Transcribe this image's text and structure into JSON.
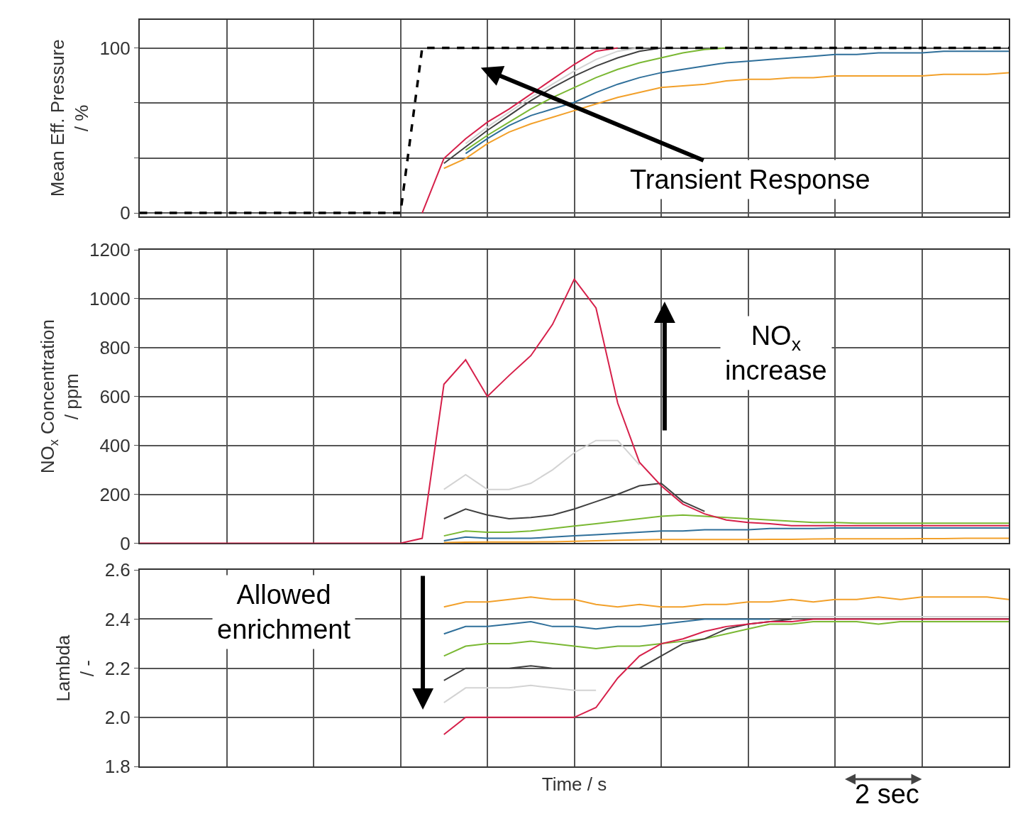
{
  "chart_data": [
    {
      "type": "line",
      "ylabel": "Mean Eff. Pressure\n/ %",
      "categories": [
        null,
        null,
        null,
        null,
        null,
        null,
        null,
        null,
        null,
        null,
        null,
        null,
        null,
        null,
        null,
        null,
        null,
        null,
        null,
        null,
        null,
        null,
        null,
        null,
        null,
        null,
        null,
        null,
        null,
        null,
        null,
        null,
        null,
        null,
        null,
        null,
        null,
        null,
        null,
        null,
        null
      ],
      "ylim": [
        -2,
        117
      ],
      "yticks": [
        0,
        {
          "value": 33.3,
          "label": null
        },
        {
          "value": 66.7,
          "label": null
        },
        100
      ],
      "grid": true,
      "tick_labels": "y",
      "annotations": [
        "Transient Response"
      ],
      "series": [
        {
          "color": "#f2a02a",
          "values": [
            null,
            null,
            null,
            null,
            null,
            null,
            null,
            null,
            null,
            null,
            null,
            null,
            null,
            null,
            27,
            33,
            42,
            49,
            54,
            58,
            62,
            66,
            70,
            73,
            76,
            77,
            78,
            80,
            81,
            81,
            82,
            82,
            83,
            83,
            83,
            83,
            83,
            84,
            84,
            84,
            85
          ]
        },
        {
          "color": "#2f6f9a",
          "values": [
            null,
            null,
            null,
            null,
            null,
            null,
            null,
            null,
            null,
            null,
            null,
            null,
            null,
            null,
            null,
            36,
            45,
            53,
            59,
            63,
            67,
            73,
            78,
            82,
            85,
            87,
            89,
            91,
            92,
            93,
            94,
            95,
            96,
            96,
            97,
            97,
            97,
            98,
            98,
            98,
            98
          ]
        },
        {
          "color": "#7ab833",
          "values": [
            null,
            null,
            null,
            null,
            null,
            null,
            null,
            null,
            null,
            null,
            null,
            null,
            null,
            null,
            null,
            38,
            47,
            55,
            63,
            70,
            76,
            82,
            87,
            91,
            94,
            97,
            99,
            100,
            null,
            null,
            null,
            null,
            null,
            null,
            null,
            null,
            null,
            null,
            null,
            null,
            null
          ]
        },
        {
          "color": "#404040",
          "values": [
            null,
            null,
            null,
            null,
            null,
            null,
            null,
            null,
            null,
            null,
            null,
            null,
            null,
            null,
            30,
            40,
            50,
            59,
            68,
            76,
            83,
            89,
            94,
            98,
            100,
            null,
            null,
            null,
            null,
            null,
            null,
            null,
            null,
            null,
            null,
            null,
            null,
            null,
            null,
            null,
            null
          ]
        },
        {
          "color": "#d3d3d3",
          "values": [
            null,
            null,
            null,
            null,
            null,
            null,
            null,
            null,
            null,
            null,
            null,
            null,
            null,
            null,
            null,
            42,
            52,
            61,
            70,
            78,
            86,
            93,
            98,
            100,
            null,
            null,
            null,
            null,
            null,
            null,
            null,
            null,
            null,
            null,
            null,
            null,
            null,
            null,
            null,
            null,
            null
          ]
        },
        {
          "color": "#d6204a",
          "values": [
            null,
            null,
            null,
            null,
            null,
            null,
            null,
            null,
            null,
            null,
            null,
            null,
            null,
            0,
            33,
            45,
            55,
            63,
            72,
            81,
            90,
            98,
            100,
            null,
            null,
            null,
            null,
            null,
            null,
            null,
            null,
            null,
            null,
            null,
            null,
            null,
            null,
            null,
            null,
            null,
            null
          ]
        },
        {
          "color": "#000000",
          "line_style": "dashed",
          "values": [
            0,
            0,
            0,
            0,
            0,
            0,
            0,
            0,
            0,
            0,
            0,
            0,
            0,
            100,
            100,
            100,
            100,
            100,
            100,
            100,
            100,
            100,
            100,
            100,
            100,
            100,
            100,
            100,
            100,
            100,
            100,
            100,
            100,
            100,
            100,
            100,
            100,
            100,
            100,
            100,
            100
          ]
        }
      ]
    },
    {
      "type": "line",
      "ylabel": "NO$_{x}$ Concentration\n/ ppm",
      "categories": [
        null,
        null,
        null,
        null,
        null,
        null,
        null,
        null,
        null,
        null,
        null,
        null,
        null,
        null,
        null,
        null,
        null,
        null,
        null,
        null,
        null,
        null,
        null,
        null,
        null,
        null,
        null,
        null,
        null,
        null,
        null,
        null,
        null,
        null,
        null,
        null,
        null,
        null,
        null,
        null,
        null
      ],
      "ylim": [
        0,
        1200
      ],
      "yticks": [
        0,
        200,
        400,
        600,
        800,
        1000,
        1200
      ],
      "grid": true,
      "tick_labels": "y",
      "annotations": [
        "NO$_{x}$\nincrease"
      ],
      "series": [
        {
          "color": "#f2a02a",
          "values": [
            null,
            null,
            null,
            null,
            null,
            null,
            null,
            null,
            null,
            null,
            null,
            null,
            null,
            null,
            3,
            4,
            5,
            5,
            5,
            6,
            8,
            10,
            12,
            14,
            15,
            15,
            15,
            15,
            15,
            16,
            16,
            17,
            18,
            18,
            18,
            18,
            19,
            19,
            20,
            20,
            20
          ]
        },
        {
          "color": "#2f6f9a",
          "values": [
            null,
            null,
            null,
            null,
            null,
            null,
            null,
            null,
            null,
            null,
            null,
            null,
            null,
            null,
            10,
            25,
            20,
            20,
            20,
            25,
            30,
            35,
            40,
            45,
            50,
            50,
            55,
            55,
            55,
            60,
            60,
            60,
            62,
            62,
            62,
            62,
            62,
            62,
            62,
            62,
            62
          ]
        },
        {
          "color": "#7ab833",
          "values": [
            null,
            null,
            null,
            null,
            null,
            null,
            null,
            null,
            null,
            null,
            null,
            null,
            null,
            null,
            30,
            50,
            45,
            45,
            50,
            60,
            70,
            80,
            90,
            100,
            110,
            115,
            110,
            105,
            100,
            95,
            90,
            85,
            85,
            82,
            82,
            82,
            82,
            82,
            82,
            82,
            82
          ]
        },
        {
          "color": "#404040",
          "values": [
            null,
            null,
            null,
            null,
            null,
            null,
            null,
            null,
            null,
            null,
            null,
            null,
            null,
            null,
            100,
            140,
            115,
            100,
            105,
            115,
            140,
            170,
            200,
            235,
            245,
            170,
            130,
            null,
            null,
            null,
            null,
            null,
            null,
            null,
            null,
            null,
            null,
            null,
            null,
            null,
            null
          ]
        },
        {
          "color": "#d3d3d3",
          "values": [
            null,
            null,
            null,
            null,
            null,
            null,
            null,
            null,
            null,
            null,
            null,
            null,
            null,
            null,
            220,
            280,
            220,
            220,
            245,
            300,
            370,
            420,
            420,
            320,
            null,
            null,
            null,
            null,
            null,
            null,
            null,
            null,
            null,
            null,
            null,
            null,
            null,
            null,
            null,
            null,
            null
          ]
        },
        {
          "color": "#d6204a",
          "values": [
            0,
            0,
            0,
            0,
            0,
            0,
            0,
            0,
            0,
            0,
            0,
            0,
            0,
            20,
            650,
            750,
            600,
            686,
            767,
            895,
            1080,
            962,
            573,
            331,
            235,
            160,
            120,
            95,
            85,
            80,
            72,
            72,
            72,
            72,
            72,
            72,
            72,
            72,
            72,
            72,
            72
          ]
        }
      ]
    },
    {
      "type": "line",
      "ylabel": "Lambda\n/ -",
      "xlabel": "Time / s",
      "categories": [
        null,
        null,
        null,
        null,
        null,
        null,
        null,
        null,
        null,
        null,
        null,
        null,
        null,
        null,
        null,
        null,
        null,
        null,
        null,
        null,
        null,
        null,
        null,
        null,
        null,
        null,
        null,
        null,
        null,
        null,
        null,
        null,
        null,
        null,
        null,
        null,
        null,
        null,
        null,
        null,
        null
      ],
      "ylim": [
        1.8,
        2.6
      ],
      "yticks": [
        1.8,
        {
          "value": 2,
          "label": "2.0"
        },
        2.2,
        2.4,
        2.6
      ],
      "grid": true,
      "tick_labels": "y",
      "annotations": [
        "Allowed\nenrichment",
        "2 sec"
      ],
      "series": [
        {
          "color": "#f2a02a",
          "values": [
            null,
            null,
            null,
            null,
            null,
            null,
            null,
            null,
            null,
            null,
            null,
            null,
            null,
            null,
            2.45,
            2.47,
            2.47,
            2.48,
            2.49,
            2.48,
            2.48,
            2.46,
            2.45,
            2.46,
            2.45,
            2.45,
            2.46,
            2.46,
            2.47,
            2.47,
            2.48,
            2.47,
            2.48,
            2.48,
            2.49,
            2.48,
            2.49,
            2.49,
            2.49,
            2.49,
            2.48
          ]
        },
        {
          "color": "#2f6f9a",
          "values": [
            null,
            null,
            null,
            null,
            null,
            null,
            null,
            null,
            null,
            null,
            null,
            null,
            null,
            null,
            2.34,
            2.37,
            2.37,
            2.38,
            2.39,
            2.37,
            2.37,
            2.36,
            2.37,
            2.37,
            2.38,
            2.39,
            2.4,
            2.4,
            2.4,
            2.4,
            null,
            null,
            null,
            null,
            null,
            null,
            null,
            null,
            null,
            null,
            null
          ]
        },
        {
          "color": "#7ab833",
          "values": [
            null,
            null,
            null,
            null,
            null,
            null,
            null,
            null,
            null,
            null,
            null,
            null,
            null,
            null,
            2.25,
            2.29,
            2.3,
            2.3,
            2.31,
            2.3,
            2.29,
            2.28,
            2.29,
            2.29,
            2.3,
            2.31,
            2.32,
            2.34,
            2.36,
            2.38,
            2.38,
            2.39,
            2.39,
            2.39,
            2.38,
            2.39,
            2.39,
            2.39,
            2.39,
            2.39,
            2.39
          ]
        },
        {
          "color": "#404040",
          "values": [
            null,
            null,
            null,
            null,
            null,
            null,
            null,
            null,
            null,
            null,
            null,
            null,
            null,
            null,
            2.15,
            2.2,
            2.2,
            2.2,
            2.21,
            2.2,
            2.2,
            2.2,
            2.2,
            2.2,
            2.25,
            2.3,
            2.32,
            2.36,
            2.38,
            2.39,
            2.4,
            null,
            null,
            null,
            null,
            null,
            null,
            null,
            null,
            null,
            null
          ]
        },
        {
          "color": "#d3d3d3",
          "values": [
            null,
            null,
            null,
            null,
            null,
            null,
            null,
            null,
            null,
            null,
            null,
            null,
            null,
            null,
            2.06,
            2.12,
            2.12,
            2.12,
            2.13,
            2.12,
            2.11,
            2.11,
            null,
            null,
            null,
            null,
            null,
            null,
            null,
            null,
            2.41,
            2.41,
            2.41,
            2.41,
            2.41,
            2.41,
            2.41,
            2.41,
            2.41,
            2.41,
            2.41
          ]
        },
        {
          "color": "#d6204a",
          "values": [
            null,
            null,
            null,
            null,
            null,
            null,
            null,
            null,
            null,
            null,
            null,
            null,
            null,
            null,
            1.93,
            2.0,
            2.0,
            2.0,
            2.0,
            2.0,
            2.0,
            2.04,
            2.16,
            2.25,
            2.3,
            2.32,
            2.35,
            2.37,
            2.38,
            2.39,
            2.39,
            2.4,
            2.4,
            2.4,
            2.4,
            2.4,
            2.4,
            2.4,
            2.4,
            2.4,
            2.4
          ]
        }
      ]
    }
  ]
}
